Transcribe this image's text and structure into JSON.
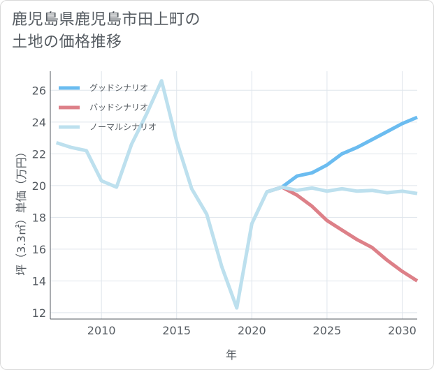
{
  "chart_data": {
    "type": "line",
    "title_lines": [
      "鹿児島県鹿児島市田上町の",
      "土地の価格推移"
    ],
    "xlabel": "年",
    "ylabel": "坪（3.3㎡）単価（万円）",
    "xlim": [
      2006.6,
      2031
    ],
    "ylim": [
      11.6,
      27.2
    ],
    "xticks": [
      2010,
      2015,
      2020,
      2025,
      2030
    ],
    "yticks": [
      12,
      14,
      16,
      18,
      20,
      22,
      24,
      26
    ],
    "grid": true,
    "legend_position": "top-left",
    "series": [
      {
        "name": "グッドシナリオ",
        "color": "#6bbcf0",
        "x": [
          2021,
          2022,
          2023,
          2024,
          2025,
          2026,
          2027,
          2028,
          2029,
          2030,
          2031
        ],
        "y": [
          19.6,
          19.9,
          20.6,
          20.8,
          21.3,
          22.0,
          22.4,
          22.9,
          23.4,
          23.9,
          24.3
        ]
      },
      {
        "name": "バッドシナリオ",
        "color": "#dd8088",
        "x": [
          2021,
          2022,
          2023,
          2024,
          2025,
          2026,
          2027,
          2028,
          2029,
          2030,
          2031
        ],
        "y": [
          19.6,
          19.9,
          19.4,
          18.7,
          17.8,
          17.2,
          16.6,
          16.1,
          15.3,
          14.6,
          14.0
        ]
      },
      {
        "name": "ノーマルシナリオ",
        "color": "#bde0ee",
        "x": [
          2007,
          2008,
          2009,
          2010,
          2011,
          2012,
          2013,
          2014,
          2015,
          2016,
          2017,
          2018,
          2019,
          2020,
          2021,
          2022,
          2023,
          2024,
          2025,
          2026,
          2027,
          2028,
          2029,
          2030,
          2031
        ],
        "y": [
          22.7,
          22.4,
          22.2,
          20.3,
          19.9,
          22.6,
          24.5,
          26.6,
          22.8,
          19.8,
          18.2,
          14.9,
          12.3,
          17.6,
          19.6,
          19.9,
          19.7,
          19.85,
          19.65,
          19.8,
          19.65,
          19.7,
          19.55,
          19.65,
          19.5
        ]
      }
    ]
  }
}
